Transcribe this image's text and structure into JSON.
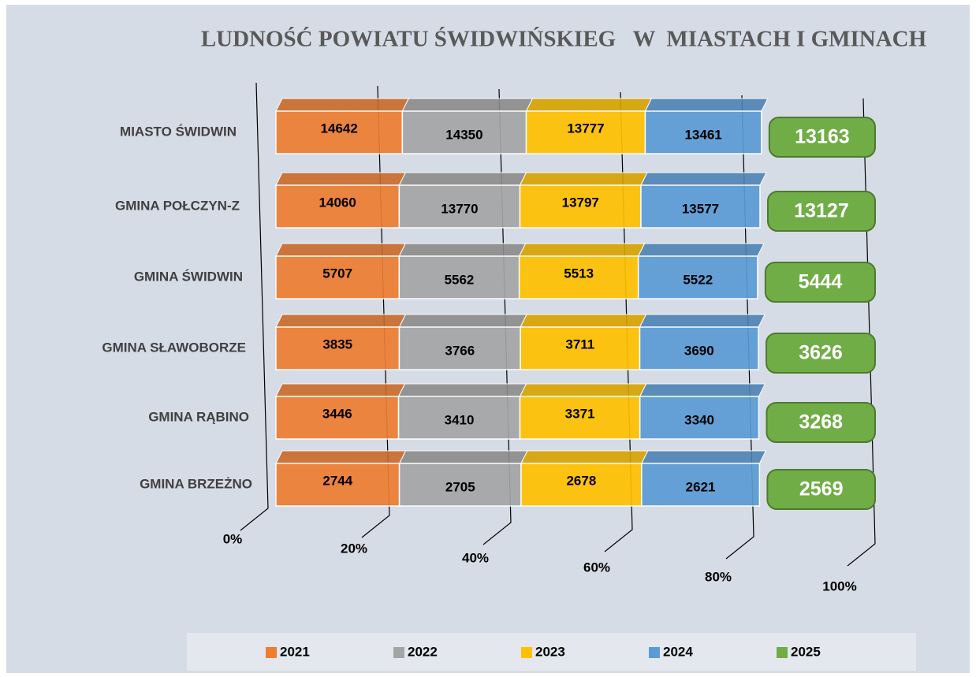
{
  "chart_data": {
    "type": "bar",
    "orientation": "horizontal",
    "stacking": "percent",
    "title": "LUDNOŚĆ POWIATU ŚWIDWIŃSKIEG   W  MIASTACH I GMINACH",
    "categories": [
      "MIASTO ŚWIDWIN",
      "GMINA POŁCZYN-Z",
      "GMINA ŚWIDWIN",
      "GMINA SŁAWOBORZE",
      "GMINA RĄBINO",
      "GMINA BRZEŻNO"
    ],
    "series": [
      {
        "name": "2021",
        "color": "#ed7d31",
        "values": [
          14642,
          14060,
          5707,
          3835,
          3446,
          2744
        ]
      },
      {
        "name": "2022",
        "color": "#a5a5a5",
        "values": [
          14350,
          13770,
          5562,
          3766,
          3410,
          2705
        ]
      },
      {
        "name": "2023",
        "color": "#ffc000",
        "values": [
          13777,
          13797,
          5513,
          3711,
          3371,
          2678
        ]
      },
      {
        "name": "2024",
        "color": "#5b9bd5",
        "values": [
          13461,
          13577,
          5522,
          3690,
          3340,
          2621
        ]
      },
      {
        "name": "2025",
        "color": "#70ad47",
        "values": [
          13163,
          13127,
          5444,
          3626,
          3268,
          2569
        ]
      }
    ],
    "xlim": [
      0,
      100
    ],
    "xticks": [
      {
        "value": 0,
        "label": "0%"
      },
      {
        "value": 20,
        "label": "20%"
      },
      {
        "value": 40,
        "label": "40%"
      },
      {
        "value": 60,
        "label": "60%"
      },
      {
        "value": 80,
        "label": "80%"
      },
      {
        "value": 100,
        "label": "100%"
      }
    ],
    "grid": true,
    "legend": "bottom"
  }
}
